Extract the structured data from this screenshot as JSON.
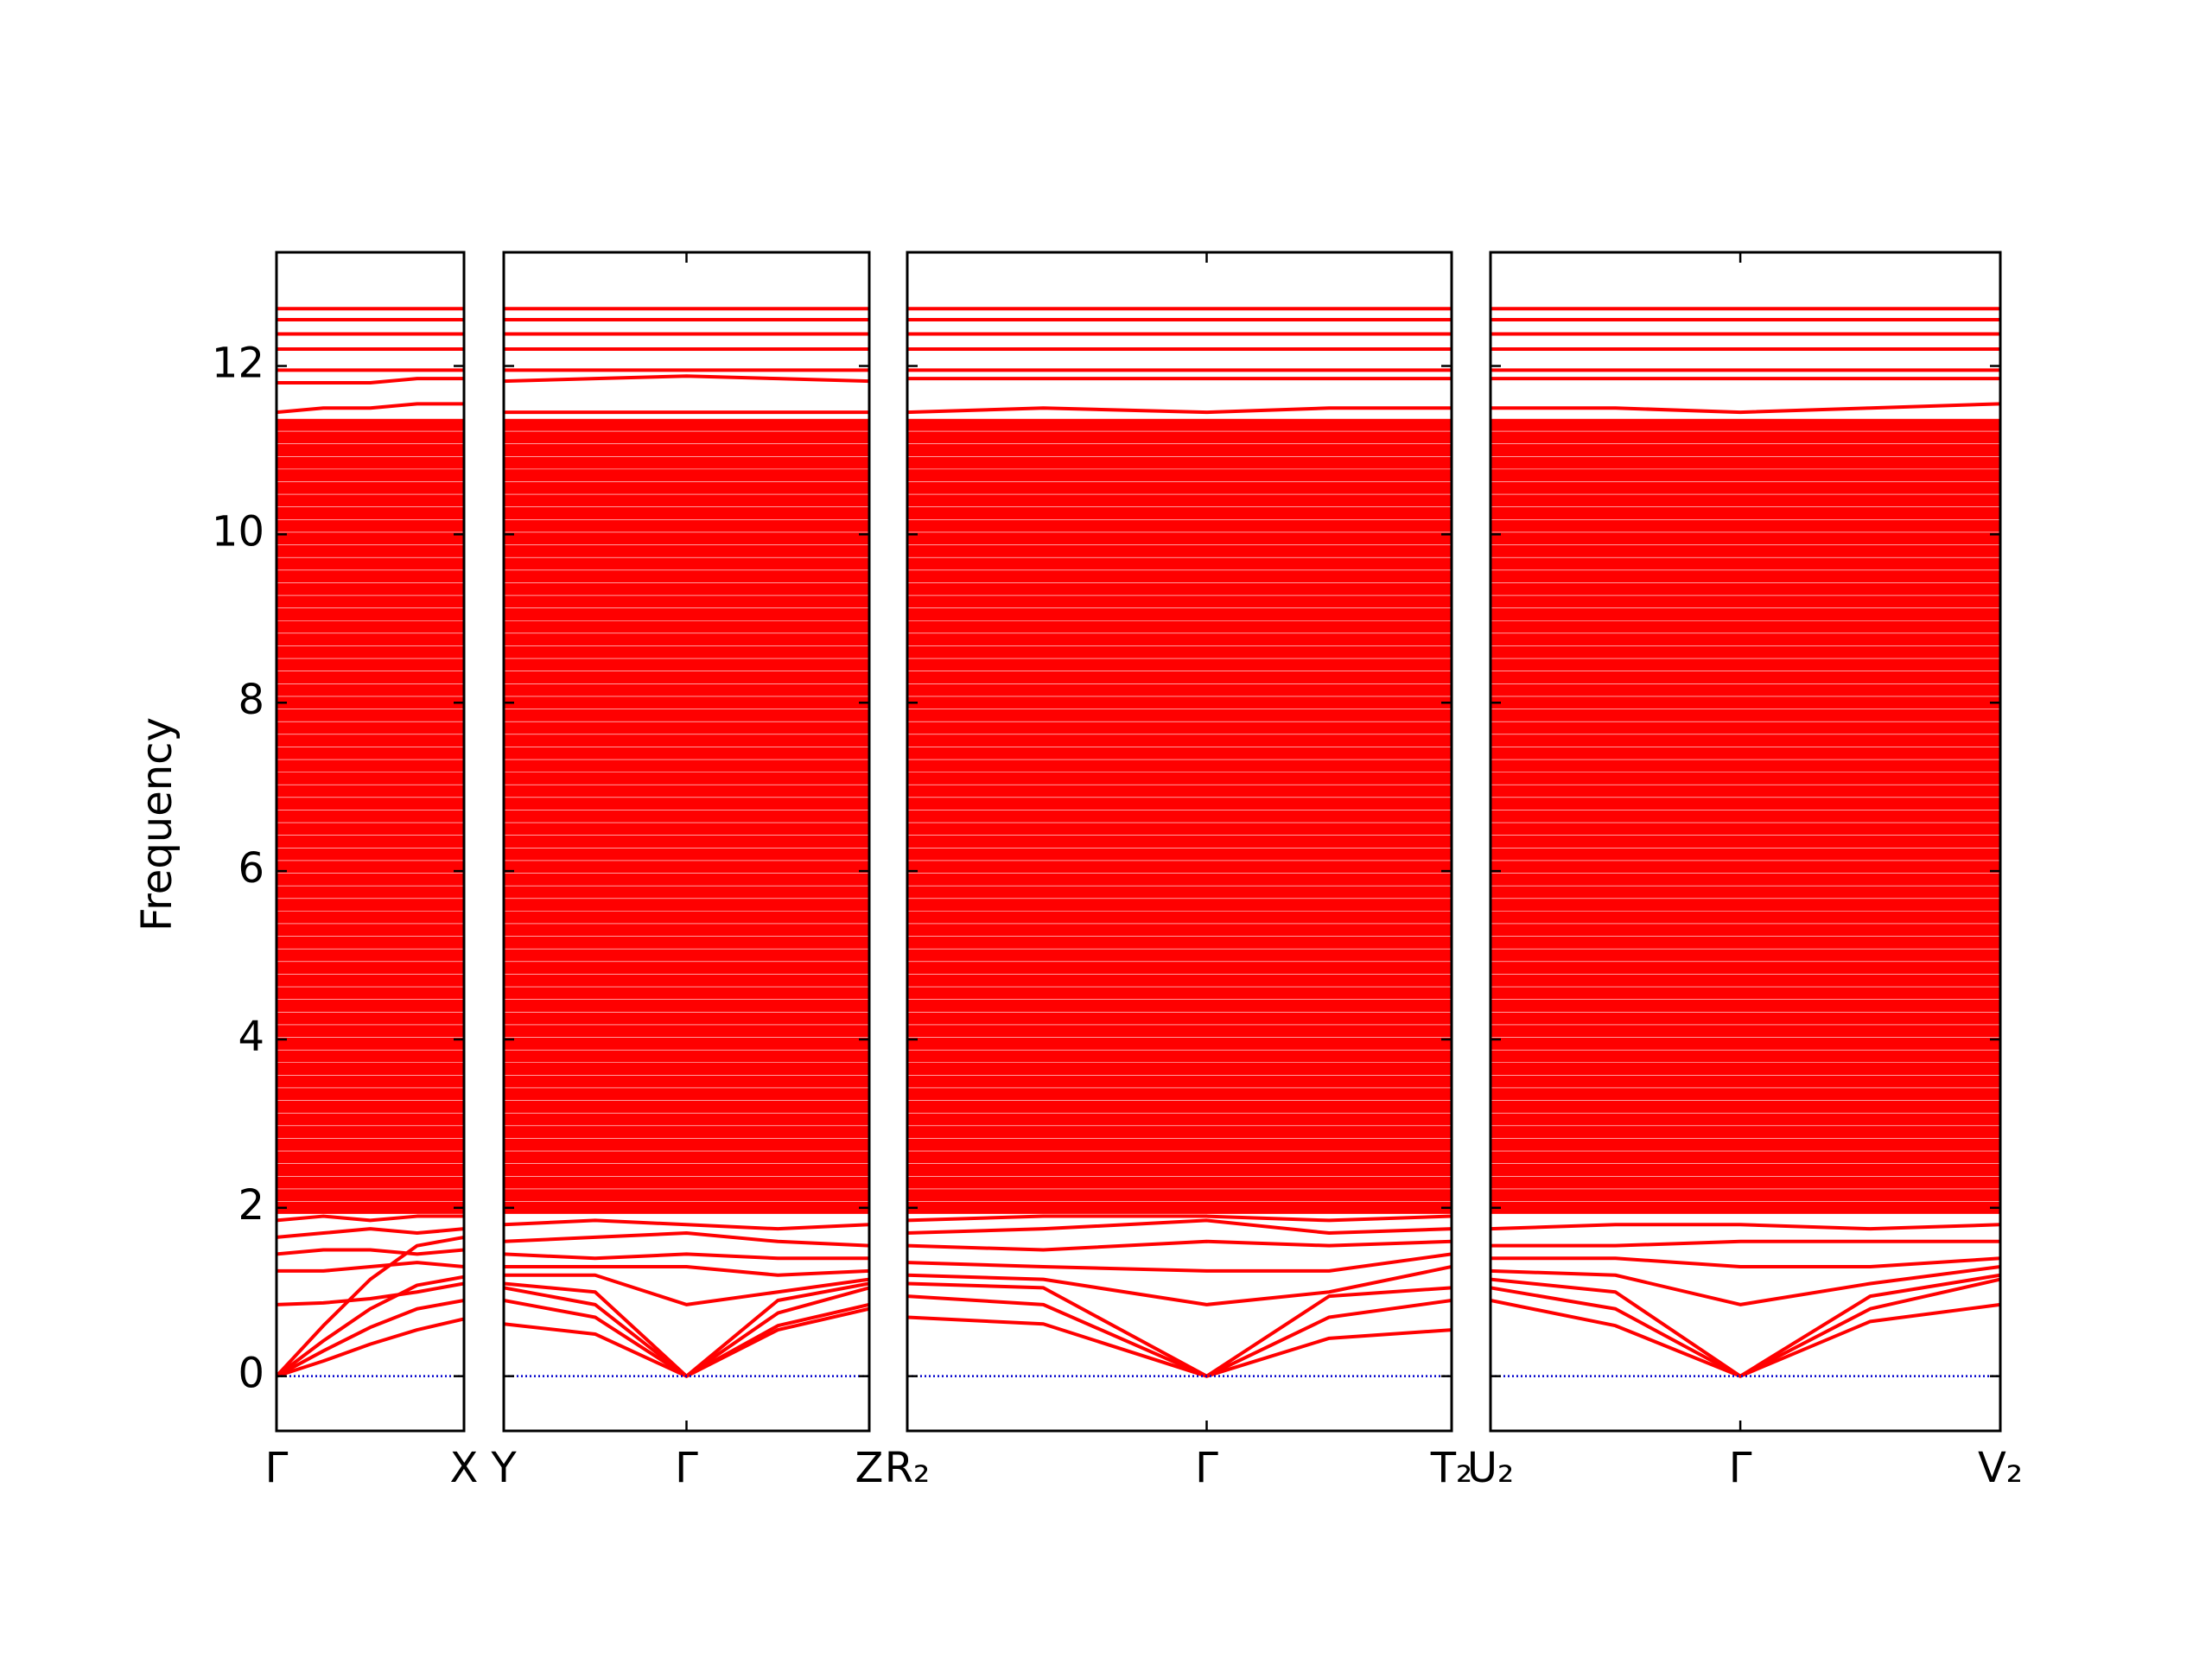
{
  "chart_data": [
    {
      "type": "line",
      "ylabel": "Frequency",
      "color": "#ff0000",
      "hline_color": "#0000cc",
      "hlines": [
        0
      ],
      "xlim": [
        0,
        1
      ],
      "ylim": [
        -0.65,
        13.35
      ],
      "xticks": [
        {
          "value": 0,
          "label": "Γ"
        },
        {
          "value": 1,
          "label": "X"
        }
      ],
      "yticks": [
        0,
        2,
        4,
        6,
        8,
        10,
        12
      ],
      "x": [
        0,
        0.25,
        0.5,
        0.75,
        1
      ],
      "series": [
        {
          "values": [
            0,
            0.18,
            0.38,
            0.55,
            0.68
          ]
        },
        {
          "values": [
            0,
            0.3,
            0.58,
            0.8,
            0.9
          ]
        },
        {
          "values": [
            0,
            0.42,
            0.8,
            1.08,
            1.18
          ]
        },
        {
          "values": [
            0,
            0.6,
            1.15,
            1.55,
            1.65
          ]
        },
        {
          "values": [
            0.85,
            0.87,
            0.92,
            1.0,
            1.1
          ]
        },
        {
          "values": [
            1.25,
            1.25,
            1.3,
            1.35,
            1.3
          ]
        },
        {
          "values": [
            1.45,
            1.5,
            1.5,
            1.45,
            1.5
          ]
        },
        {
          "values": [
            1.65,
            1.7,
            1.75,
            1.7,
            1.75
          ]
        },
        {
          "values": [
            1.85,
            1.9,
            1.85,
            1.9,
            1.9
          ]
        },
        {
          "values": [
            11.45,
            11.5,
            11.5,
            11.55,
            11.55
          ]
        },
        {
          "values": [
            11.8,
            11.8,
            11.8,
            11.85,
            11.85
          ]
        },
        {
          "values": [
            11.95,
            11.95,
            11.95,
            11.95,
            11.95
          ]
        },
        {
          "values": [
            12.2,
            12.2,
            12.2,
            12.2,
            12.2
          ]
        },
        {
          "values": [
            12.38,
            12.38,
            12.38,
            12.38,
            12.38
          ]
        },
        {
          "values": [
            12.55,
            12.55,
            12.55,
            12.55,
            12.55
          ]
        },
        {
          "values": [
            12.68,
            12.68,
            12.68,
            12.68,
            12.68
          ]
        }
      ],
      "flat_bands": [
        2,
        2.15,
        2.3,
        2.45,
        2.6,
        2.75,
        2.9,
        3.05,
        3.2,
        3.35,
        3.5,
        3.65,
        3.8,
        3.95,
        4.1,
        4.25,
        4.4,
        4.55,
        4.7,
        4.85,
        5,
        5.15,
        5.3,
        5.45,
        5.6,
        5.75,
        5.9,
        6.05,
        6.2,
        6.35,
        6.5,
        6.65,
        6.8,
        6.95,
        7.1,
        7.25,
        7.4,
        7.55,
        7.7,
        7.85,
        8,
        8.15,
        8.3,
        8.45,
        8.6,
        8.75,
        8.9,
        9.05,
        9.2,
        9.35,
        9.5,
        9.65,
        9.8,
        9.95,
        10.1,
        10.25,
        10.4,
        10.55,
        10.7,
        10.85,
        11,
        11.15,
        11.3
      ]
    },
    {
      "type": "line",
      "color": "#ff0000",
      "hline_color": "#0000cc",
      "hlines": [
        0
      ],
      "xlim": [
        0,
        1
      ],
      "ylim": [
        -0.65,
        13.35
      ],
      "xticks": [
        {
          "value": 0,
          "label": "Y"
        },
        {
          "value": 0.5,
          "label": "Γ"
        },
        {
          "value": 1,
          "label": "Z"
        }
      ],
      "yticks": [
        0,
        2,
        4,
        6,
        8,
        10,
        12
      ],
      "x": [
        0,
        0.25,
        0.5,
        0.75,
        1
      ],
      "series": [
        {
          "values": [
            0.62,
            0.5,
            0,
            0.55,
            0.8
          ]
        },
        {
          "values": [
            0.9,
            0.7,
            0,
            0.6,
            0.85
          ]
        },
        {
          "values": [
            1.05,
            0.85,
            0,
            0.75,
            1.05
          ]
        },
        {
          "values": [
            1.1,
            1.0,
            0,
            0.9,
            1.1
          ]
        },
        {
          "values": [
            1.2,
            1.2,
            0.85,
            1.0,
            1.15
          ]
        },
        {
          "values": [
            1.3,
            1.3,
            1.3,
            1.2,
            1.25
          ]
        },
        {
          "values": [
            1.45,
            1.4,
            1.45,
            1.4,
            1.4
          ]
        },
        {
          "values": [
            1.6,
            1.65,
            1.7,
            1.6,
            1.55
          ]
        },
        {
          "values": [
            1.8,
            1.85,
            1.8,
            1.75,
            1.8
          ]
        },
        {
          "values": [
            11.45,
            11.45,
            11.45,
            11.45,
            11.45
          ]
        },
        {
          "values": [
            11.82,
            11.85,
            11.88,
            11.85,
            11.82
          ]
        },
        {
          "values": [
            11.95,
            11.95,
            11.95,
            11.95,
            11.95
          ]
        },
        {
          "values": [
            12.2,
            12.2,
            12.2,
            12.2,
            12.2
          ]
        },
        {
          "values": [
            12.38,
            12.38,
            12.38,
            12.38,
            12.38
          ]
        },
        {
          "values": [
            12.55,
            12.55,
            12.55,
            12.55,
            12.55
          ]
        },
        {
          "values": [
            12.68,
            12.68,
            12.68,
            12.68,
            12.68
          ]
        }
      ],
      "flat_bands": [
        2,
        2.15,
        2.3,
        2.45,
        2.6,
        2.75,
        2.9,
        3.05,
        3.2,
        3.35,
        3.5,
        3.65,
        3.8,
        3.95,
        4.1,
        4.25,
        4.4,
        4.55,
        4.7,
        4.85,
        5,
        5.15,
        5.3,
        5.45,
        5.6,
        5.75,
        5.9,
        6.05,
        6.2,
        6.35,
        6.5,
        6.65,
        6.8,
        6.95,
        7.1,
        7.25,
        7.4,
        7.55,
        7.7,
        7.85,
        8,
        8.15,
        8.3,
        8.45,
        8.6,
        8.75,
        8.9,
        9.05,
        9.2,
        9.35,
        9.5,
        9.65,
        9.8,
        9.95,
        10.1,
        10.25,
        10.4,
        10.55,
        10.7,
        10.85,
        11,
        11.15,
        11.3
      ]
    },
    {
      "type": "line",
      "color": "#ff0000",
      "hline_color": "#0000cc",
      "hlines": [
        0
      ],
      "xlim": [
        0,
        1
      ],
      "ylim": [
        -0.65,
        13.35
      ],
      "xticks": [
        {
          "value": 0,
          "label": "R₂"
        },
        {
          "value": 0.55,
          "label": "Γ"
        },
        {
          "value": 1,
          "label": "T₂"
        }
      ],
      "yticks": [
        0,
        2,
        4,
        6,
        8,
        10,
        12
      ],
      "x": [
        0,
        0.25,
        0.55,
        0.775,
        1
      ],
      "series": [
        {
          "values": [
            0.7,
            0.62,
            0,
            0.45,
            0.55
          ]
        },
        {
          "values": [
            0.95,
            0.85,
            0,
            0.7,
            0.9
          ]
        },
        {
          "values": [
            1.1,
            1.05,
            0,
            0.95,
            1.05
          ]
        },
        {
          "values": [
            1.2,
            1.15,
            0.85,
            1.0,
            1.3
          ]
        },
        {
          "values": [
            1.35,
            1.3,
            1.25,
            1.25,
            1.45
          ]
        },
        {
          "values": [
            1.55,
            1.5,
            1.6,
            1.55,
            1.6
          ]
        },
        {
          "values": [
            1.7,
            1.75,
            1.85,
            1.7,
            1.75
          ]
        },
        {
          "values": [
            1.85,
            1.9,
            1.9,
            1.85,
            1.9
          ]
        },
        {
          "values": [
            11.45,
            11.5,
            11.45,
            11.5,
            11.5
          ]
        },
        {
          "values": [
            11.85,
            11.85,
            11.85,
            11.85,
            11.85
          ]
        },
        {
          "values": [
            11.95,
            11.95,
            11.95,
            11.95,
            11.95
          ]
        },
        {
          "values": [
            12.2,
            12.2,
            12.2,
            12.2,
            12.2
          ]
        },
        {
          "values": [
            12.38,
            12.38,
            12.38,
            12.38,
            12.38
          ]
        },
        {
          "values": [
            12.55,
            12.55,
            12.55,
            12.55,
            12.55
          ]
        },
        {
          "values": [
            12.68,
            12.68,
            12.68,
            12.68,
            12.68
          ]
        }
      ],
      "flat_bands": [
        2,
        2.15,
        2.3,
        2.45,
        2.6,
        2.75,
        2.9,
        3.05,
        3.2,
        3.35,
        3.5,
        3.65,
        3.8,
        3.95,
        4.1,
        4.25,
        4.4,
        4.55,
        4.7,
        4.85,
        5,
        5.15,
        5.3,
        5.45,
        5.6,
        5.75,
        5.9,
        6.05,
        6.2,
        6.35,
        6.5,
        6.65,
        6.8,
        6.95,
        7.1,
        7.25,
        7.4,
        7.55,
        7.7,
        7.85,
        8,
        8.15,
        8.3,
        8.45,
        8.6,
        8.75,
        8.9,
        9.05,
        9.2,
        9.35,
        9.5,
        9.65,
        9.8,
        9.95,
        10.1,
        10.25,
        10.4,
        10.55,
        10.7,
        10.85,
        11,
        11.15,
        11.3
      ]
    },
    {
      "type": "line",
      "color": "#ff0000",
      "hline_color": "#0000cc",
      "hlines": [
        0
      ],
      "xlim": [
        0,
        1
      ],
      "ylim": [
        -0.65,
        13.35
      ],
      "xticks": [
        {
          "value": 0,
          "label": "U₂"
        },
        {
          "value": 0.49,
          "label": "Γ"
        },
        {
          "value": 1,
          "label": "V₂"
        }
      ],
      "yticks": [
        0,
        2,
        4,
        6,
        8,
        10,
        12
      ],
      "x": [
        0,
        0.245,
        0.49,
        0.745,
        1
      ],
      "series": [
        {
          "values": [
            0.9,
            0.6,
            0,
            0.65,
            0.85
          ]
        },
        {
          "values": [
            1.05,
            0.8,
            0,
            0.8,
            1.15
          ]
        },
        {
          "values": [
            1.15,
            1.0,
            0,
            0.95,
            1.2
          ]
        },
        {
          "values": [
            1.25,
            1.2,
            0.85,
            1.1,
            1.3
          ]
        },
        {
          "values": [
            1.4,
            1.4,
            1.3,
            1.3,
            1.4
          ]
        },
        {
          "values": [
            1.55,
            1.55,
            1.6,
            1.6,
            1.6
          ]
        },
        {
          "values": [
            1.75,
            1.8,
            1.8,
            1.75,
            1.8
          ]
        },
        {
          "values": [
            11.5,
            11.5,
            11.45,
            11.5,
            11.55
          ]
        },
        {
          "values": [
            11.85,
            11.85,
            11.85,
            11.85,
            11.85
          ]
        },
        {
          "values": [
            11.95,
            11.95,
            11.95,
            11.95,
            11.95
          ]
        },
        {
          "values": [
            12.2,
            12.2,
            12.2,
            12.2,
            12.2
          ]
        },
        {
          "values": [
            12.38,
            12.38,
            12.38,
            12.38,
            12.38
          ]
        },
        {
          "values": [
            12.55,
            12.55,
            12.55,
            12.55,
            12.55
          ]
        },
        {
          "values": [
            12.68,
            12.68,
            12.68,
            12.68,
            12.68
          ]
        }
      ],
      "flat_bands": [
        2,
        2.15,
        2.3,
        2.45,
        2.6,
        2.75,
        2.9,
        3.05,
        3.2,
        3.35,
        3.5,
        3.65,
        3.8,
        3.95,
        4.1,
        4.25,
        4.4,
        4.55,
        4.7,
        4.85,
        5,
        5.15,
        5.3,
        5.45,
        5.6,
        5.75,
        5.9,
        6.05,
        6.2,
        6.35,
        6.5,
        6.65,
        6.8,
        6.95,
        7.1,
        7.25,
        7.4,
        7.55,
        7.7,
        7.85,
        8,
        8.15,
        8.3,
        8.45,
        8.6,
        8.75,
        8.9,
        9.05,
        9.2,
        9.35,
        9.5,
        9.65,
        9.8,
        9.95,
        10.1,
        10.25,
        10.4,
        10.55,
        10.7,
        10.85,
        11,
        11.15,
        11.3
      ]
    }
  ]
}
